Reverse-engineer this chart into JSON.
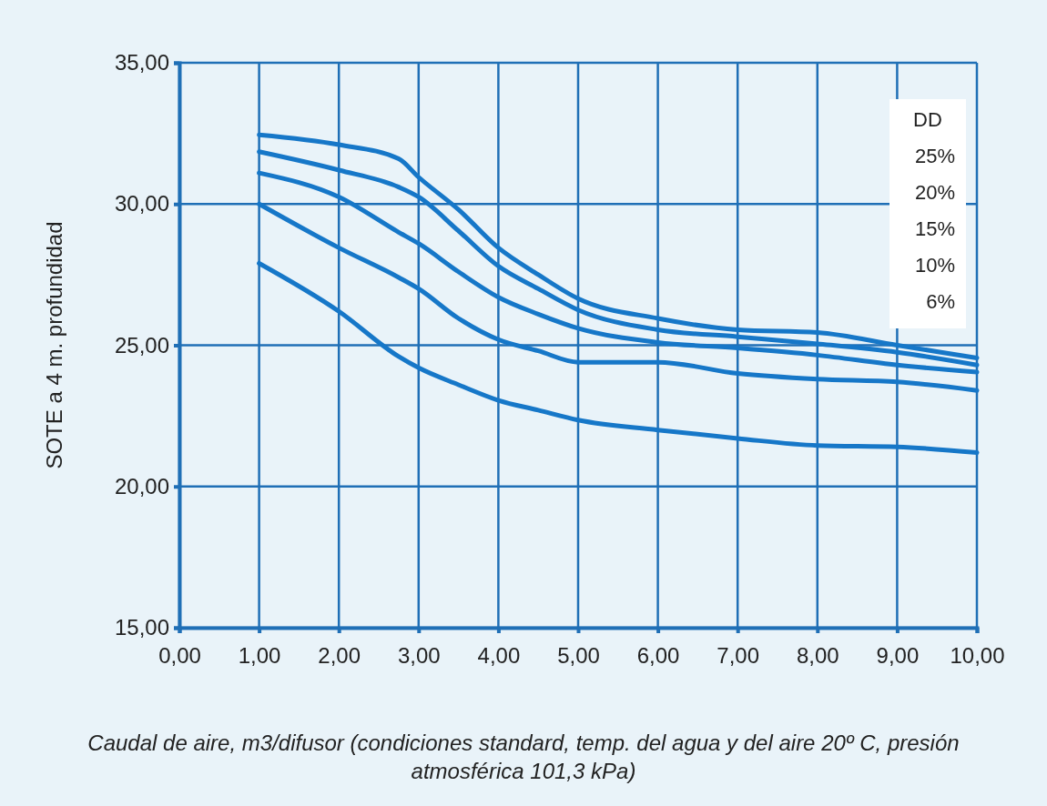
{
  "chart_data": {
    "type": "line",
    "xlabel": "Caudal de aire, m3/difusor (condiciones standard, temp. del agua y del aire 20º C, presión atmosférica 101,3 kPa)",
    "ylabel": "SOTE a 4 m. profundidad",
    "annotations": [
      "DD",
      "25%",
      "20%",
      "15%",
      "10%",
      "6%"
    ],
    "grid": true,
    "line_style": "solid",
    "marker": "none",
    "xlim": [
      0,
      10
    ],
    "xticks": [
      {
        "value": 0,
        "label": "0,00"
      },
      {
        "value": 1,
        "label": "1,00"
      },
      {
        "value": 2,
        "label": "2,00"
      },
      {
        "value": 3,
        "label": "3,00"
      },
      {
        "value": 4,
        "label": "4,00"
      },
      {
        "value": 5,
        "label": "5,00"
      },
      {
        "value": 6,
        "label": "6,00"
      },
      {
        "value": 7,
        "label": "7,00"
      },
      {
        "value": 8,
        "label": "8,00"
      },
      {
        "value": 9,
        "label": "9,00"
      },
      {
        "value": 10,
        "label": "10,00"
      }
    ],
    "ylim": [
      15,
      35
    ],
    "yticks": [
      {
        "value": 15,
        "label": "15,00"
      },
      {
        "value": 20,
        "label": "20,00"
      },
      {
        "value": 25,
        "label": "25,00"
      },
      {
        "value": 30,
        "label": "30,00"
      },
      {
        "value": 35,
        "label": "35,00"
      }
    ],
    "x": [
      1,
      2,
      2.75,
      3,
      3.5,
      4,
      4.5,
      5,
      6,
      7,
      8,
      9,
      10
    ],
    "series": [
      {
        "color": "#1677c8",
        "values": [
          32.45,
          32.1,
          31.6,
          30.95,
          29.8,
          28.45,
          27.5,
          26.65,
          25.95,
          25.55,
          25.45,
          25.0,
          24.55
        ]
      },
      {
        "color": "#1677c8",
        "values": [
          31.85,
          31.2,
          30.6,
          30.25,
          29.05,
          27.8,
          27.0,
          26.25,
          25.55,
          25.3,
          25.05,
          24.75,
          24.3
        ]
      },
      {
        "color": "#1677c8",
        "values": [
          31.1,
          30.25,
          29.0,
          28.6,
          27.6,
          26.7,
          26.1,
          25.6,
          25.1,
          24.9,
          24.65,
          24.3,
          24.05
        ]
      },
      {
        "color": "#1677c8",
        "values": [
          30.0,
          28.45,
          27.4,
          27.0,
          25.95,
          25.2,
          24.8,
          24.4,
          24.4,
          24.0,
          23.8,
          23.7,
          23.4
        ]
      },
      {
        "color": "#1677c8",
        "values": [
          27.9,
          26.2,
          24.6,
          24.2,
          23.6,
          23.05,
          22.7,
          22.35,
          22.0,
          21.7,
          21.45,
          21.4,
          21.2
        ]
      }
    ]
  }
}
